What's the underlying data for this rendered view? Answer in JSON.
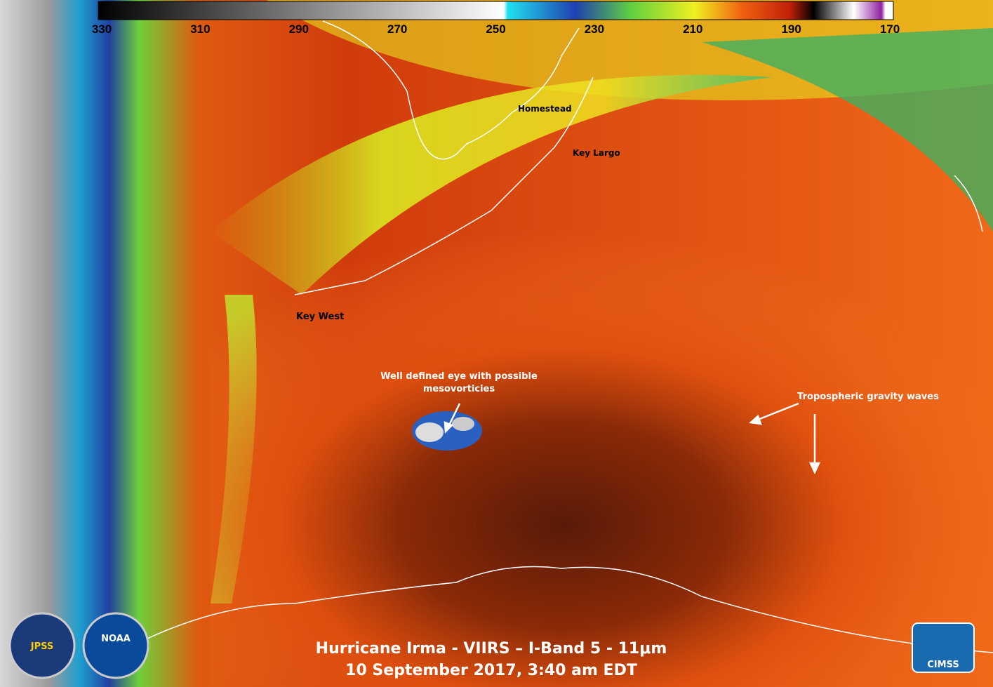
{
  "colorbar": {
    "ticks": [
      330,
      310,
      290,
      270,
      250,
      230,
      210,
      190,
      170
    ]
  },
  "places": [
    "Homestead",
    "Key Largo",
    "Key West"
  ],
  "annotations": {
    "eye": [
      "Well defined eye with possible",
      "mesovorticies"
    ],
    "waves": "Tropospheric gravity waves"
  },
  "title": [
    "Hurricane Irma - VIIRS – I-Band 5 - 11μm",
    "10 September 2017, 3:40 am EDT"
  ],
  "logos": [
    "JPSS",
    "NOAA",
    "CIMSS"
  ]
}
